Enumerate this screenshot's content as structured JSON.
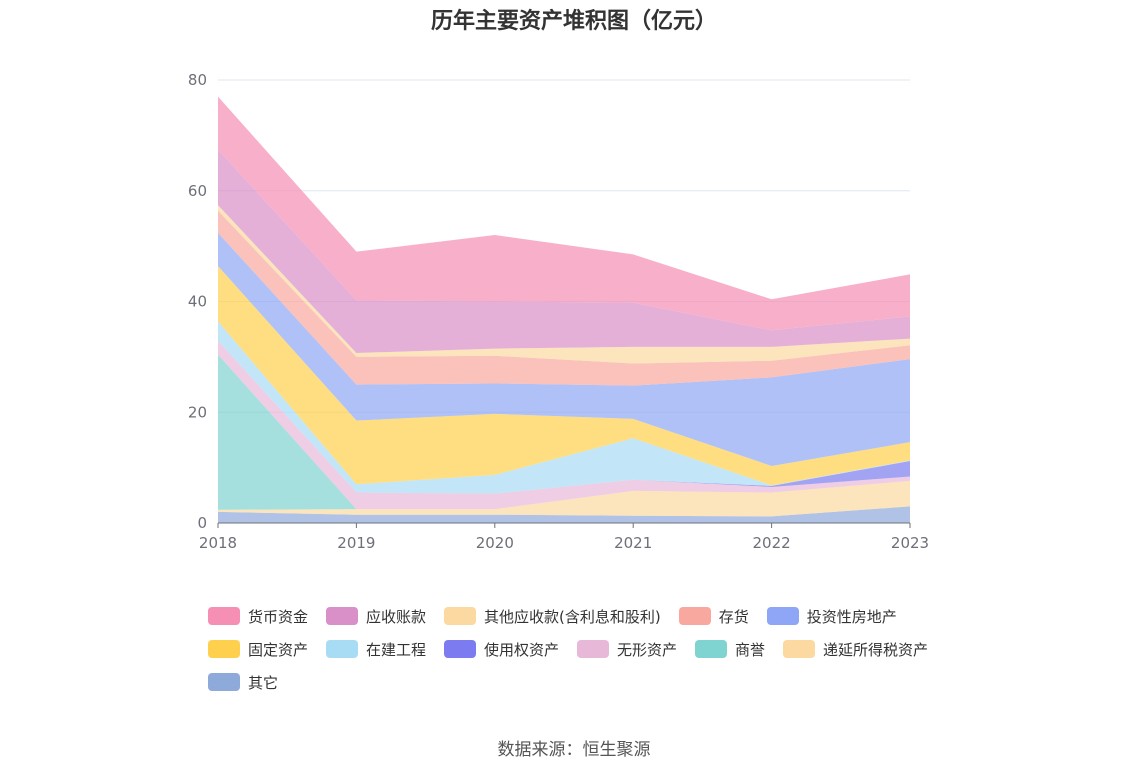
{
  "chart_data": {
    "type": "area",
    "stacked": true,
    "title": "历年主要资产堆积图（亿元）",
    "x": [
      "2018",
      "2019",
      "2020",
      "2021",
      "2022",
      "2023"
    ],
    "ylim": [
      0,
      80
    ],
    "yticks": [
      0,
      20,
      40,
      60,
      80
    ],
    "grid": true,
    "legend_position": "bottom",
    "series": [
      {
        "name": "其它",
        "color": "#8eaadb",
        "values": [
          2.0,
          1.5,
          1.5,
          1.3,
          1.2,
          3.0
        ]
      },
      {
        "name": "递延所得税资产",
        "color": "#fbd9a0",
        "values": [
          0.4,
          1.0,
          1.0,
          4.5,
          4.3,
          4.6
        ]
      },
      {
        "name": "商誉",
        "color": "#7fd3d1",
        "values": [
          28.0,
          0,
          0,
          0,
          0,
          0
        ]
      },
      {
        "name": "无形资产",
        "color": "#e8b8d9",
        "values": [
          2.5,
          3.0,
          2.8,
          2.0,
          1.0,
          0.8
        ]
      },
      {
        "name": "使用权资产",
        "color": "#7c7cf0",
        "values": [
          0,
          0,
          0,
          0,
          0.2,
          2.8
        ]
      },
      {
        "name": "在建工程",
        "color": "#a8dcf5",
        "values": [
          3.5,
          1.5,
          3.4,
          7.5,
          0.1,
          0.1
        ]
      },
      {
        "name": "固定资产",
        "color": "#ffd04d",
        "values": [
          10.0,
          11.5,
          11.0,
          3.5,
          3.5,
          3.3
        ]
      },
      {
        "name": "投资性房地产",
        "color": "#8ea6f5",
        "values": [
          6.0,
          6.5,
          5.5,
          6.0,
          16.0,
          15.0
        ]
      },
      {
        "name": "存货",
        "color": "#f9a8a0",
        "values": [
          4.0,
          5.0,
          5.0,
          4.0,
          3.0,
          2.5
        ]
      },
      {
        "name": "其他应收款(含利息和股利)",
        "color": "#fbd9a0",
        "values": [
          1.0,
          0.7,
          1.3,
          3.0,
          2.5,
          1.2
        ]
      },
      {
        "name": "应收账款",
        "color": "#d98fc8",
        "values": [
          10.0,
          9.5,
          8.5,
          8.0,
          3.0,
          4.0
        ]
      },
      {
        "name": "货币资金",
        "color": "#f58fb3",
        "values": [
          9.6,
          8.8,
          12.0,
          8.7,
          5.6,
          7.6
        ]
      }
    ],
    "legend_order": [
      "货币资金",
      "应收账款",
      "其他应收款(含利息和股利)",
      "存货",
      "投资性房地产",
      "固定资产",
      "在建工程",
      "使用权资产",
      "无形资产",
      "商誉",
      "递延所得税资产",
      "其它"
    ]
  },
  "source": "数据来源：恒生聚源"
}
